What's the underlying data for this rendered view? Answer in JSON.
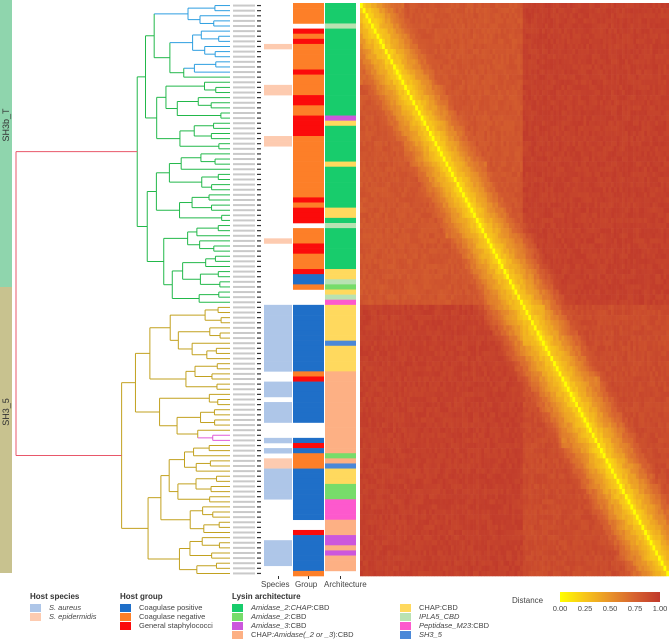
{
  "clades": [
    {
      "label": "SH3b_T",
      "color": "#8fd5ad"
    },
    {
      "label": "SH3_5",
      "color": "#c8c28f"
    }
  ],
  "track_labels": {
    "species": "Species",
    "group": "Group",
    "architecture": "Architecture"
  },
  "legend": {
    "species_title": "Host species",
    "species": [
      {
        "code": "A",
        "label": "S. aureus",
        "color": "#aec6e8"
      },
      {
        "code": "E",
        "label": "S. epidermidis",
        "color": "#fdcbb0"
      }
    ],
    "group_title": "Host group",
    "groups": [
      {
        "code": "P",
        "label": "Coagulase positive",
        "color": "#1f6fc8"
      },
      {
        "code": "N",
        "label": "Coagulase negative",
        "color": "#fd7f28"
      },
      {
        "code": "R",
        "label": "General staphylococci",
        "color": "#fb0b0b"
      }
    ],
    "arch_title": "Lysin architecture",
    "architectures": [
      {
        "code": "G",
        "label_a": "Amidase_2",
        "label_b": ":",
        "label_c": "CHAP",
        "label_d": ":CBD",
        "color": "#18cc6c"
      },
      {
        "code": "M",
        "label_a": "Amidase_2",
        "label_b": ":CBD",
        "label_c": "",
        "label_d": "",
        "color": "#77dc6a"
      },
      {
        "code": "P",
        "label_a": "Amidase_3",
        "label_b": ":CBD",
        "label_c": "",
        "label_d": "",
        "color": "#cc57dd"
      },
      {
        "code": "S",
        "label_a": "CHAP",
        "label_b": ":Amidase(",
        "label_c": "_2 or _3",
        "label_d": "):CBD",
        "color": "#fdb084"
      },
      {
        "code": "Y",
        "label_a": "CHAP",
        "label_b": ":CBD",
        "label_c": "",
        "label_d": "",
        "color": "#ffd95e"
      },
      {
        "code": "L",
        "label_a": "IPLA5_CBD",
        "label_b": "",
        "label_c": "",
        "label_d": "",
        "color": "#b9e2b2"
      },
      {
        "code": "K",
        "label_a": "Peptidase_M23",
        "label_b": ":CBD",
        "label_c": "",
        "label_d": "",
        "color": "#fd59cd"
      },
      {
        "code": "B",
        "label_a": "SH3_5",
        "label_b": "",
        "label_c": "",
        "label_d": "",
        "color": "#4a88d8"
      }
    ]
  },
  "tracks": {
    "species_runs": [
      [
        "-",
        8
      ],
      [
        "E",
        1
      ],
      [
        "-",
        7
      ],
      [
        "E",
        2
      ],
      [
        "-",
        8
      ],
      [
        "E",
        2
      ],
      [
        "-",
        18
      ],
      [
        "E",
        1
      ],
      [
        "-",
        12
      ],
      [
        "A",
        13
      ],
      [
        "-",
        2
      ],
      [
        "A",
        3
      ],
      [
        "-",
        1
      ],
      [
        "A",
        4
      ],
      [
        "-",
        3
      ],
      [
        "A",
        1
      ],
      [
        "-",
        1
      ],
      [
        "A",
        1
      ],
      [
        "-",
        1
      ],
      [
        "E",
        2
      ],
      [
        "A",
        6
      ],
      [
        "-",
        8
      ],
      [
        "A",
        5
      ],
      [
        "-",
        2
      ]
    ],
    "group_runs": [
      [
        "N",
        4
      ],
      [
        "-",
        1
      ],
      [
        "R",
        1
      ],
      [
        "N",
        1
      ],
      [
        "R",
        1
      ],
      [
        "N",
        5
      ],
      [
        "R",
        1
      ],
      [
        "N",
        4
      ],
      [
        "R",
        2
      ],
      [
        "N",
        2
      ],
      [
        "R",
        4
      ],
      [
        "N",
        12
      ],
      [
        "R",
        1
      ],
      [
        "N",
        1
      ],
      [
        "R",
        3
      ],
      [
        "-",
        1
      ],
      [
        "N",
        3
      ],
      [
        "R",
        2
      ],
      [
        "N",
        3
      ],
      [
        "R",
        1
      ],
      [
        "P",
        2
      ],
      [
        "N",
        1
      ],
      [
        "-",
        3
      ],
      [
        "P",
        13
      ],
      [
        "N",
        1
      ],
      [
        "R",
        1
      ],
      [
        "P",
        8
      ],
      [
        "-",
        3
      ],
      [
        "P",
        1
      ],
      [
        "R",
        1
      ],
      [
        "P",
        1
      ],
      [
        "N",
        3
      ],
      [
        "P",
        10
      ],
      [
        "-",
        2
      ],
      [
        "R",
        1
      ],
      [
        "P",
        7
      ],
      [
        "N",
        1
      ]
    ],
    "arch_runs": [
      [
        "G",
        4
      ],
      [
        "L",
        1
      ],
      [
        "G",
        17
      ],
      [
        "P",
        1
      ],
      [
        "Y",
        1
      ],
      [
        "G",
        7
      ],
      [
        "Y",
        1
      ],
      [
        "G",
        8
      ],
      [
        "Y",
        2
      ],
      [
        "G",
        1
      ],
      [
        "L",
        1
      ],
      [
        "G",
        8
      ],
      [
        "Y",
        2
      ],
      [
        "L",
        1
      ],
      [
        "M",
        1
      ],
      [
        "Y",
        1
      ],
      [
        "L",
        1
      ],
      [
        "K",
        1
      ],
      [
        "Y",
        7
      ],
      [
        "B",
        1
      ],
      [
        "Y",
        5
      ],
      [
        "S",
        16
      ],
      [
        "M",
        1
      ],
      [
        "S",
        1
      ],
      [
        "B",
        1
      ],
      [
        "Y",
        3
      ],
      [
        "M",
        3
      ],
      [
        "K",
        4
      ],
      [
        "S",
        3
      ],
      [
        "P",
        2
      ],
      [
        "S",
        1
      ],
      [
        "P",
        1
      ],
      [
        "S",
        3
      ],
      [
        "-",
        1
      ]
    ]
  },
  "chart_data": {
    "type": "heatmap",
    "title": "",
    "n_leaves": 112,
    "colorbar": {
      "title": "Distance",
      "range": [
        0,
        1
      ],
      "ticks": [
        "0.00",
        "0.25",
        "0.50",
        "0.75",
        "1.00"
      ],
      "colors": [
        "#ffff00",
        "#f7c51a",
        "#e89229",
        "#d6612f",
        "#c0392b"
      ]
    },
    "clade_leaf_counts": [
      59,
      53
    ],
    "between_clade_distance": 0.95,
    "blocks": [
      {
        "rows": [
          0,
          58
        ],
        "within": 0.82
      },
      {
        "rows": [
          0,
          15
        ],
        "within": 0.72
      },
      {
        "rows": [
          16,
          30
        ],
        "within": 0.74
      },
      {
        "rows": [
          31,
          45
        ],
        "within": 0.68
      },
      {
        "rows": [
          46,
          58
        ],
        "within": 0.62
      },
      {
        "rows": [
          59,
          111
        ],
        "within": 0.88
      },
      {
        "rows": [
          59,
          66
        ],
        "within": 0.35
      },
      {
        "rows": [
          67,
          72
        ],
        "within": 0.55
      },
      {
        "rows": [
          73,
          86
        ],
        "within": 0.6
      },
      {
        "rows": [
          87,
          95
        ],
        "within": 0.55
      },
      {
        "rows": [
          96,
          104
        ],
        "within": 0.5
      },
      {
        "rows": [
          105,
          111
        ],
        "within": 0.55
      }
    ],
    "diagonal": 0.0
  }
}
